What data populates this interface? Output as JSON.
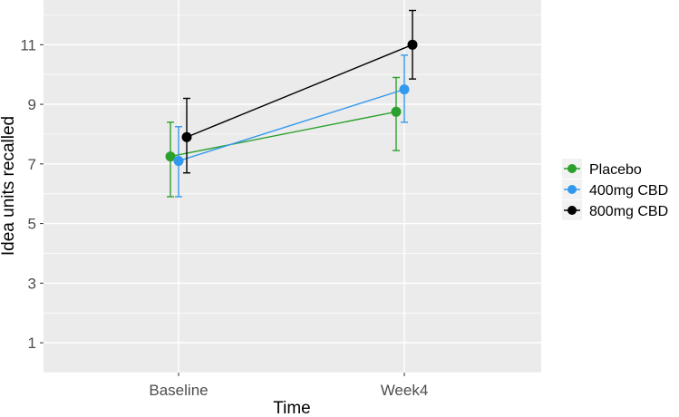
{
  "chart_data": {
    "type": "line",
    "xlabel": "Time",
    "ylabel": "Idea units recalled",
    "categories": [
      "Baseline",
      "Week4"
    ],
    "ylim": [
      0,
      12.5
    ],
    "yticks": [
      1,
      3,
      5,
      7,
      9,
      11
    ],
    "grid": true,
    "legend_position": "right",
    "series": [
      {
        "name": "Placebo",
        "color": "#2ca02c",
        "values": [
          7.25,
          8.75
        ],
        "err_low": [
          5.9,
          7.45
        ],
        "err_high": [
          8.4,
          9.9
        ]
      },
      {
        "name": "400mg CBD",
        "color": "#3399ee",
        "values": [
          7.1,
          9.5
        ],
        "err_low": [
          5.9,
          8.4
        ],
        "err_high": [
          8.25,
          10.65
        ]
      },
      {
        "name": "800mg CBD",
        "color": "#000000",
        "values": [
          7.9,
          11.0
        ],
        "err_low": [
          6.7,
          9.85
        ],
        "err_high": [
          9.2,
          12.15
        ]
      }
    ]
  }
}
